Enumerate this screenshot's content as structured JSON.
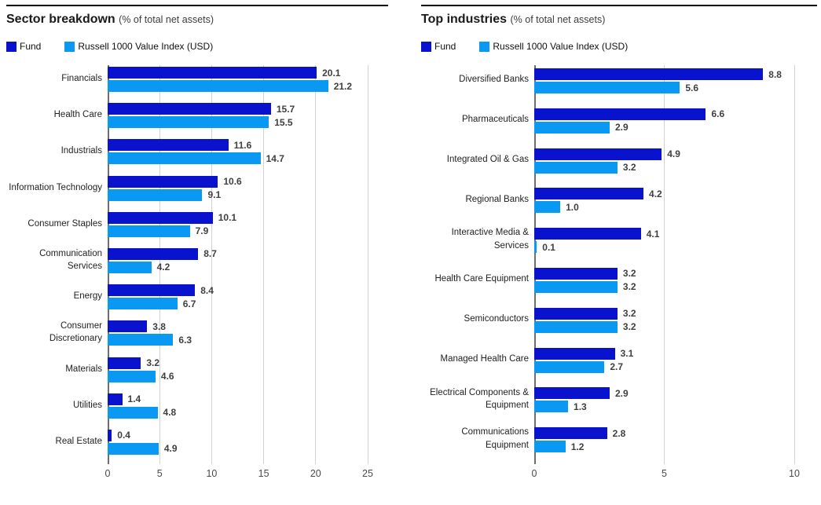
{
  "colors": {
    "fund": "#0912cc",
    "index": "#0a99f2",
    "grid": "#d2d2d2",
    "axis_line": "#6f6f6f",
    "rule": "#000000",
    "value_label": "#3f3f3f",
    "tick_label": "#4a4a4a"
  },
  "chart_data": [
    {
      "type": "bar",
      "orientation": "horizontal",
      "title": "Sector breakdown",
      "subtitle": "(% of total net assets)",
      "legend": [
        "Fund",
        "Russell 1000 Value Index (USD)"
      ],
      "legend_position": "top",
      "grid": true,
      "xlim": [
        0,
        25
      ],
      "ticks": [
        0,
        5,
        10,
        15,
        20,
        25
      ],
      "categories": [
        "Financials",
        "Health Care",
        "Industrials",
        "Information Technology",
        "Consumer Staples",
        "Communication Services",
        "Energy",
        "Consumer Discretionary",
        "Materials",
        "Utilities",
        "Real Estate"
      ],
      "series": [
        {
          "name": "Fund",
          "values": [
            20.1,
            15.7,
            11.6,
            10.6,
            10.1,
            8.7,
            8.4,
            3.8,
            3.2,
            1.4,
            0.4
          ]
        },
        {
          "name": "Russell 1000 Value Index (USD)",
          "values": [
            21.2,
            15.5,
            14.7,
            9.1,
            7.9,
            4.2,
            6.7,
            6.3,
            4.6,
            4.8,
            4.9
          ]
        }
      ]
    },
    {
      "type": "bar",
      "orientation": "horizontal",
      "title": "Top industries",
      "subtitle": "(% of total net assets)",
      "legend": [
        "Fund",
        "Russell 1000 Value Index (USD)"
      ],
      "legend_position": "top",
      "grid": true,
      "xlim": [
        0,
        10
      ],
      "ticks": [
        0,
        5,
        10
      ],
      "categories": [
        "Diversified Banks",
        "Pharmaceuticals",
        "Integrated Oil & Gas",
        "Regional Banks",
        "Interactive Media & Services",
        "Health Care Equipment",
        "Semiconductors",
        "Managed Health Care",
        "Electrical Components & Equipment",
        "Communications Equipment"
      ],
      "series": [
        {
          "name": "Fund",
          "values": [
            8.8,
            6.6,
            4.9,
            4.2,
            4.1,
            3.2,
            3.2,
            3.1,
            2.9,
            2.8
          ]
        },
        {
          "name": "Russell 1000 Value Index (USD)",
          "values": [
            5.6,
            2.9,
            3.2,
            1.0,
            0.1,
            3.2,
            3.2,
            2.7,
            1.3,
            1.2
          ]
        }
      ]
    }
  ]
}
